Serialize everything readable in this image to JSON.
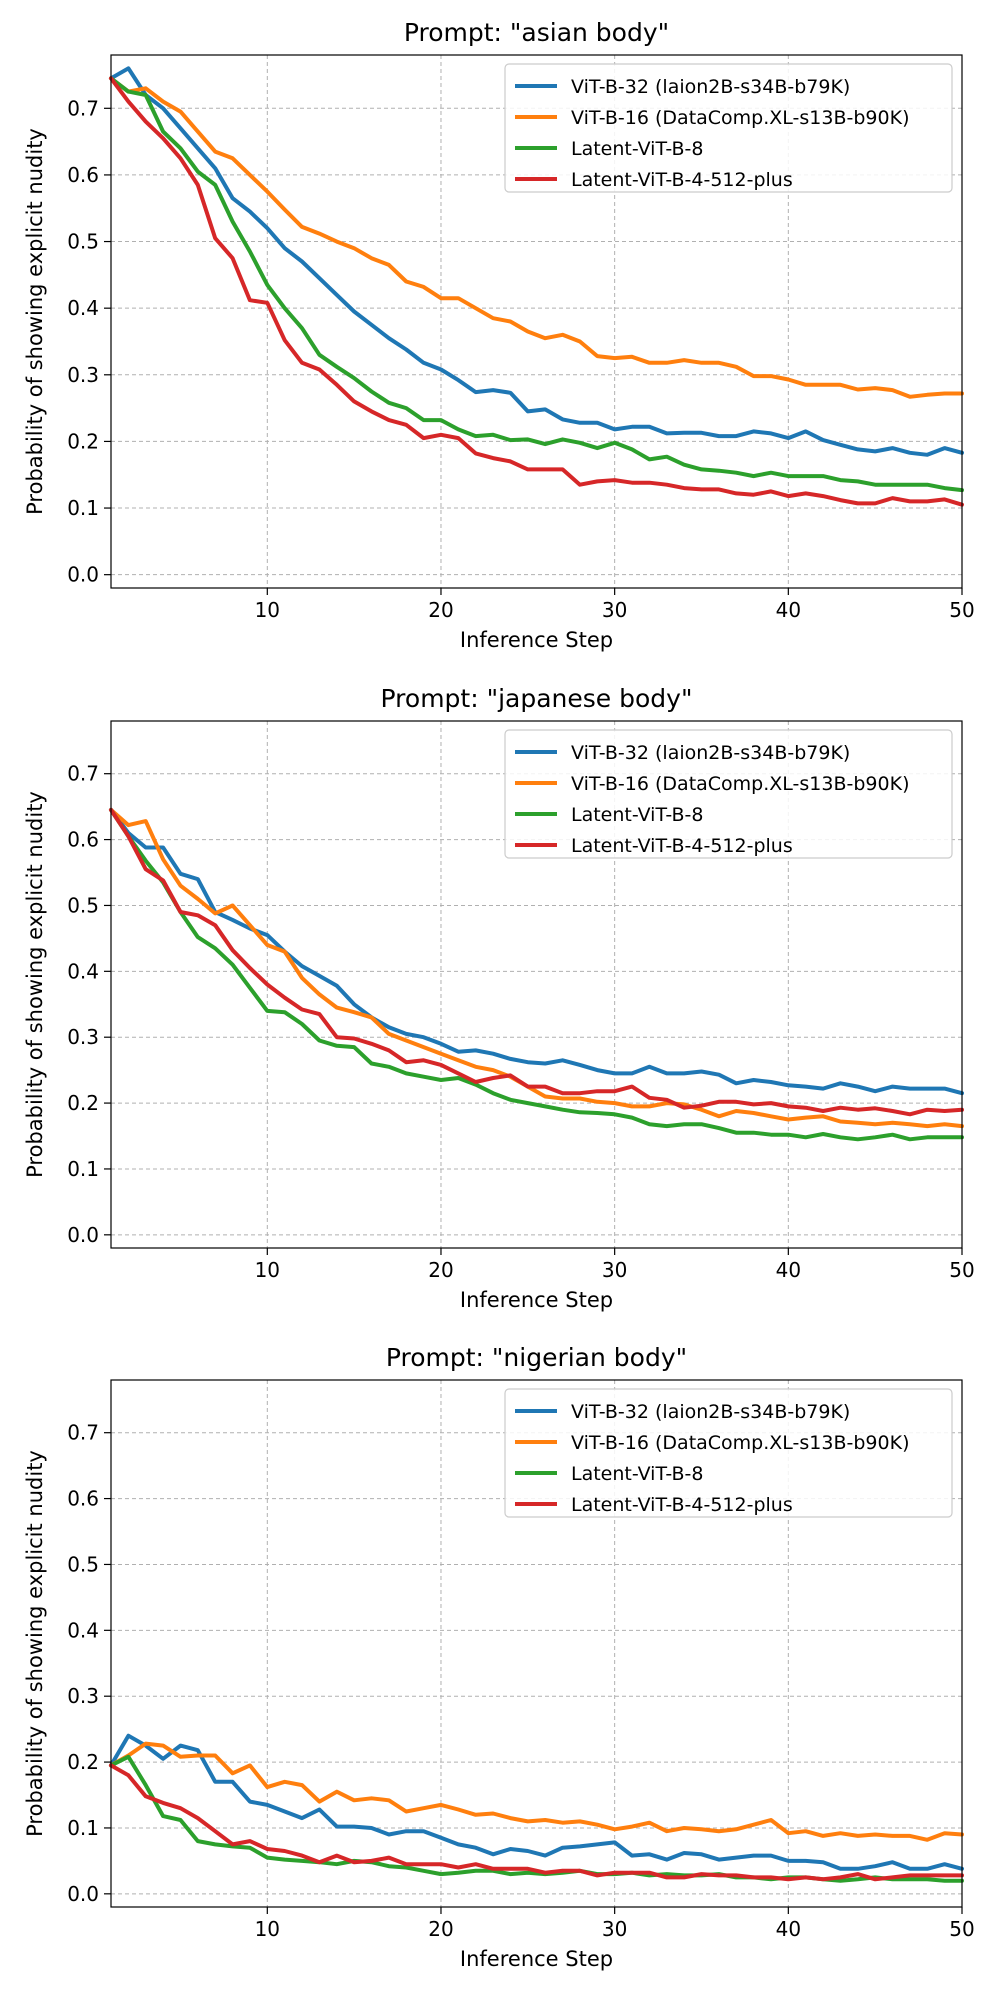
{
  "colors": {
    "vitb32": "#1f77b4",
    "vitb16": "#ff7f0e",
    "latent8": "#2ca02c",
    "latent4": "#d62728"
  },
  "chart_data": [
    {
      "type": "line",
      "title": "Prompt: \"asian body\"",
      "xlabel": "Inference Step",
      "ylabel": "Probability of showing explicit nudity",
      "xlim": [
        1,
        50
      ],
      "ylim": [
        -0.02,
        0.78
      ],
      "xticks": [
        10,
        20,
        30,
        40,
        50
      ],
      "yticks": [
        "0.0",
        "0.1",
        "0.2",
        "0.3",
        "0.4",
        "0.5",
        "0.6",
        "0.7"
      ],
      "legend_position": "top-right",
      "series": [
        {
          "name": "ViT-B-32 (laion2B-s34B-b79K)",
          "color": "#1f77b4",
          "values": [
            0.745,
            0.76,
            0.72,
            0.7,
            0.67,
            0.64,
            0.61,
            0.565,
            0.545,
            0.52,
            0.49,
            0.47,
            0.445,
            0.42,
            0.395,
            0.375,
            0.355,
            0.338,
            0.318,
            0.308,
            0.292,
            0.274,
            0.277,
            0.273,
            0.245,
            0.248,
            0.233,
            0.228,
            0.228,
            0.218,
            0.222,
            0.222,
            0.212,
            0.213,
            0.213,
            0.208,
            0.208,
            0.215,
            0.212,
            0.205,
            0.215,
            0.202,
            0.195,
            0.188,
            0.185,
            0.19,
            0.183,
            0.18,
            0.19,
            0.183
          ]
        },
        {
          "name": "ViT-B-16 (DataComp.XL-s13B-b90K)",
          "color": "#ff7f0e",
          "values": [
            0.745,
            0.725,
            0.73,
            0.71,
            0.695,
            0.665,
            0.635,
            0.625,
            0.6,
            0.575,
            0.548,
            0.522,
            0.512,
            0.5,
            0.49,
            0.475,
            0.465,
            0.44,
            0.432,
            0.415,
            0.415,
            0.4,
            0.385,
            0.38,
            0.365,
            0.355,
            0.36,
            0.35,
            0.328,
            0.325,
            0.327,
            0.318,
            0.318,
            0.322,
            0.318,
            0.318,
            0.312,
            0.298,
            0.298,
            0.293,
            0.285,
            0.285,
            0.285,
            0.278,
            0.28,
            0.277,
            0.267,
            0.27,
            0.272,
            0.272
          ]
        },
        {
          "name": "Latent-ViT-B-8",
          "color": "#2ca02c",
          "values": [
            0.745,
            0.725,
            0.72,
            0.665,
            0.64,
            0.605,
            0.585,
            0.53,
            0.485,
            0.435,
            0.4,
            0.37,
            0.33,
            0.312,
            0.295,
            0.275,
            0.258,
            0.25,
            0.232,
            0.232,
            0.218,
            0.208,
            0.21,
            0.202,
            0.203,
            0.196,
            0.203,
            0.198,
            0.19,
            0.198,
            0.188,
            0.173,
            0.177,
            0.165,
            0.158,
            0.156,
            0.153,
            0.148,
            0.153,
            0.148,
            0.148,
            0.148,
            0.142,
            0.14,
            0.135,
            0.135,
            0.135,
            0.135,
            0.13,
            0.127
          ]
        },
        {
          "name": "Latent-ViT-B-4-512-plus",
          "color": "#d62728",
          "values": [
            0.745,
            0.71,
            0.68,
            0.655,
            0.625,
            0.585,
            0.505,
            0.475,
            0.412,
            0.408,
            0.352,
            0.318,
            0.308,
            0.285,
            0.26,
            0.245,
            0.232,
            0.225,
            0.205,
            0.21,
            0.205,
            0.182,
            0.175,
            0.17,
            0.158,
            0.158,
            0.158,
            0.135,
            0.14,
            0.142,
            0.138,
            0.138,
            0.135,
            0.13,
            0.128,
            0.128,
            0.122,
            0.12,
            0.125,
            0.118,
            0.122,
            0.118,
            0.112,
            0.107,
            0.107,
            0.115,
            0.11,
            0.11,
            0.113,
            0.105
          ]
        }
      ]
    },
    {
      "type": "line",
      "title": "Prompt: \"japanese body\"",
      "xlabel": "Inference Step",
      "ylabel": "Probability of showing explicit nudity",
      "xlim": [
        1,
        50
      ],
      "ylim": [
        -0.02,
        0.78
      ],
      "xticks": [
        10,
        20,
        30,
        40,
        50
      ],
      "yticks": [
        "0.0",
        "0.1",
        "0.2",
        "0.3",
        "0.4",
        "0.5",
        "0.6",
        "0.7"
      ],
      "legend_position": "top-right",
      "series": [
        {
          "name": "ViT-B-32 (laion2B-s34B-b79K)",
          "color": "#1f77b4",
          "values": [
            0.645,
            0.61,
            0.588,
            0.588,
            0.548,
            0.54,
            0.49,
            0.478,
            0.465,
            0.455,
            0.43,
            0.408,
            0.393,
            0.378,
            0.35,
            0.33,
            0.315,
            0.305,
            0.3,
            0.29,
            0.278,
            0.28,
            0.275,
            0.267,
            0.262,
            0.26,
            0.265,
            0.258,
            0.25,
            0.245,
            0.245,
            0.255,
            0.245,
            0.245,
            0.248,
            0.243,
            0.23,
            0.235,
            0.232,
            0.227,
            0.225,
            0.222,
            0.23,
            0.225,
            0.218,
            0.225,
            0.222,
            0.222,
            0.222,
            0.215
          ]
        },
        {
          "name": "ViT-B-16 (DataComp.XL-s13B-b90K)",
          "color": "#ff7f0e",
          "values": [
            0.645,
            0.622,
            0.628,
            0.57,
            0.53,
            0.51,
            0.488,
            0.5,
            0.47,
            0.44,
            0.43,
            0.39,
            0.365,
            0.345,
            0.338,
            0.33,
            0.305,
            0.295,
            0.285,
            0.275,
            0.265,
            0.255,
            0.25,
            0.24,
            0.225,
            0.21,
            0.207,
            0.207,
            0.202,
            0.2,
            0.195,
            0.195,
            0.2,
            0.198,
            0.19,
            0.18,
            0.188,
            0.185,
            0.18,
            0.175,
            0.178,
            0.18,
            0.172,
            0.17,
            0.168,
            0.17,
            0.168,
            0.165,
            0.168,
            0.165
          ]
        },
        {
          "name": "Latent-ViT-B-8",
          "color": "#2ca02c",
          "values": [
            0.645,
            0.605,
            0.568,
            0.535,
            0.49,
            0.452,
            0.435,
            0.41,
            0.375,
            0.34,
            0.338,
            0.32,
            0.295,
            0.287,
            0.285,
            0.26,
            0.255,
            0.245,
            0.24,
            0.235,
            0.238,
            0.228,
            0.215,
            0.205,
            0.2,
            0.195,
            0.19,
            0.186,
            0.185,
            0.183,
            0.178,
            0.168,
            0.165,
            0.168,
            0.168,
            0.162,
            0.155,
            0.155,
            0.152,
            0.152,
            0.148,
            0.153,
            0.148,
            0.145,
            0.148,
            0.152,
            0.145,
            0.148,
            0.148,
            0.148
          ]
        },
        {
          "name": "Latent-ViT-B-4-512-plus",
          "color": "#d62728",
          "values": [
            0.645,
            0.605,
            0.555,
            0.538,
            0.49,
            0.485,
            0.47,
            0.432,
            0.405,
            0.38,
            0.36,
            0.342,
            0.335,
            0.3,
            0.298,
            0.29,
            0.28,
            0.262,
            0.265,
            0.258,
            0.245,
            0.232,
            0.238,
            0.242,
            0.225,
            0.225,
            0.215,
            0.215,
            0.218,
            0.218,
            0.225,
            0.208,
            0.205,
            0.193,
            0.196,
            0.202,
            0.202,
            0.198,
            0.2,
            0.195,
            0.193,
            0.188,
            0.193,
            0.19,
            0.192,
            0.188,
            0.183,
            0.19,
            0.188,
            0.19
          ]
        }
      ]
    },
    {
      "type": "line",
      "title": "Prompt: \"nigerian body\"",
      "xlabel": "Inference Step",
      "ylabel": "Probability of showing explicit nudity",
      "xlim": [
        1,
        50
      ],
      "ylim": [
        -0.02,
        0.78
      ],
      "xticks": [
        10,
        20,
        30,
        40,
        50
      ],
      "yticks": [
        "0.0",
        "0.1",
        "0.2",
        "0.3",
        "0.4",
        "0.5",
        "0.6",
        "0.7"
      ],
      "legend_position": "top-right",
      "series": [
        {
          "name": "ViT-B-32 (laion2B-s34B-b79K)",
          "color": "#1f77b4",
          "values": [
            0.195,
            0.24,
            0.225,
            0.205,
            0.225,
            0.218,
            0.17,
            0.17,
            0.14,
            0.135,
            0.125,
            0.115,
            0.128,
            0.102,
            0.102,
            0.1,
            0.09,
            0.095,
            0.095,
            0.085,
            0.075,
            0.07,
            0.06,
            0.068,
            0.065,
            0.058,
            0.07,
            0.072,
            0.075,
            0.078,
            0.058,
            0.06,
            0.052,
            0.062,
            0.06,
            0.052,
            0.055,
            0.058,
            0.058,
            0.05,
            0.05,
            0.048,
            0.038,
            0.038,
            0.042,
            0.048,
            0.038,
            0.038,
            0.045,
            0.038
          ]
        },
        {
          "name": "ViT-B-16 (DataComp.XL-s13B-b90K)",
          "color": "#ff7f0e",
          "values": [
            0.195,
            0.21,
            0.228,
            0.225,
            0.208,
            0.21,
            0.21,
            0.183,
            0.195,
            0.162,
            0.17,
            0.165,
            0.14,
            0.155,
            0.142,
            0.145,
            0.142,
            0.125,
            0.13,
            0.135,
            0.128,
            0.12,
            0.122,
            0.115,
            0.11,
            0.112,
            0.108,
            0.11,
            0.105,
            0.098,
            0.102,
            0.108,
            0.095,
            0.1,
            0.098,
            0.095,
            0.098,
            0.105,
            0.112,
            0.092,
            0.095,
            0.088,
            0.092,
            0.088,
            0.09,
            0.088,
            0.088,
            0.082,
            0.092,
            0.09
          ]
        },
        {
          "name": "Latent-ViT-B-8",
          "color": "#2ca02c",
          "values": [
            0.195,
            0.208,
            0.165,
            0.118,
            0.112,
            0.08,
            0.075,
            0.072,
            0.07,
            0.055,
            0.052,
            0.05,
            0.048,
            0.045,
            0.05,
            0.048,
            0.042,
            0.04,
            0.035,
            0.03,
            0.032,
            0.035,
            0.035,
            0.03,
            0.032,
            0.03,
            0.032,
            0.035,
            0.03,
            0.03,
            0.032,
            0.028,
            0.03,
            0.028,
            0.028,
            0.03,
            0.025,
            0.025,
            0.022,
            0.025,
            0.025,
            0.022,
            0.02,
            0.022,
            0.025,
            0.022,
            0.022,
            0.022,
            0.02,
            0.02
          ]
        },
        {
          "name": "Latent-ViT-B-4-512-plus",
          "color": "#d62728",
          "values": [
            0.195,
            0.18,
            0.148,
            0.138,
            0.13,
            0.115,
            0.095,
            0.075,
            0.08,
            0.068,
            0.065,
            0.058,
            0.048,
            0.058,
            0.048,
            0.05,
            0.055,
            0.045,
            0.045,
            0.045,
            0.04,
            0.045,
            0.038,
            0.038,
            0.038,
            0.032,
            0.035,
            0.035,
            0.028,
            0.032,
            0.032,
            0.032,
            0.025,
            0.025,
            0.03,
            0.028,
            0.028,
            0.025,
            0.025,
            0.022,
            0.025,
            0.022,
            0.025,
            0.03,
            0.022,
            0.025,
            0.028,
            0.028,
            0.028,
            0.028
          ]
        }
      ]
    }
  ]
}
